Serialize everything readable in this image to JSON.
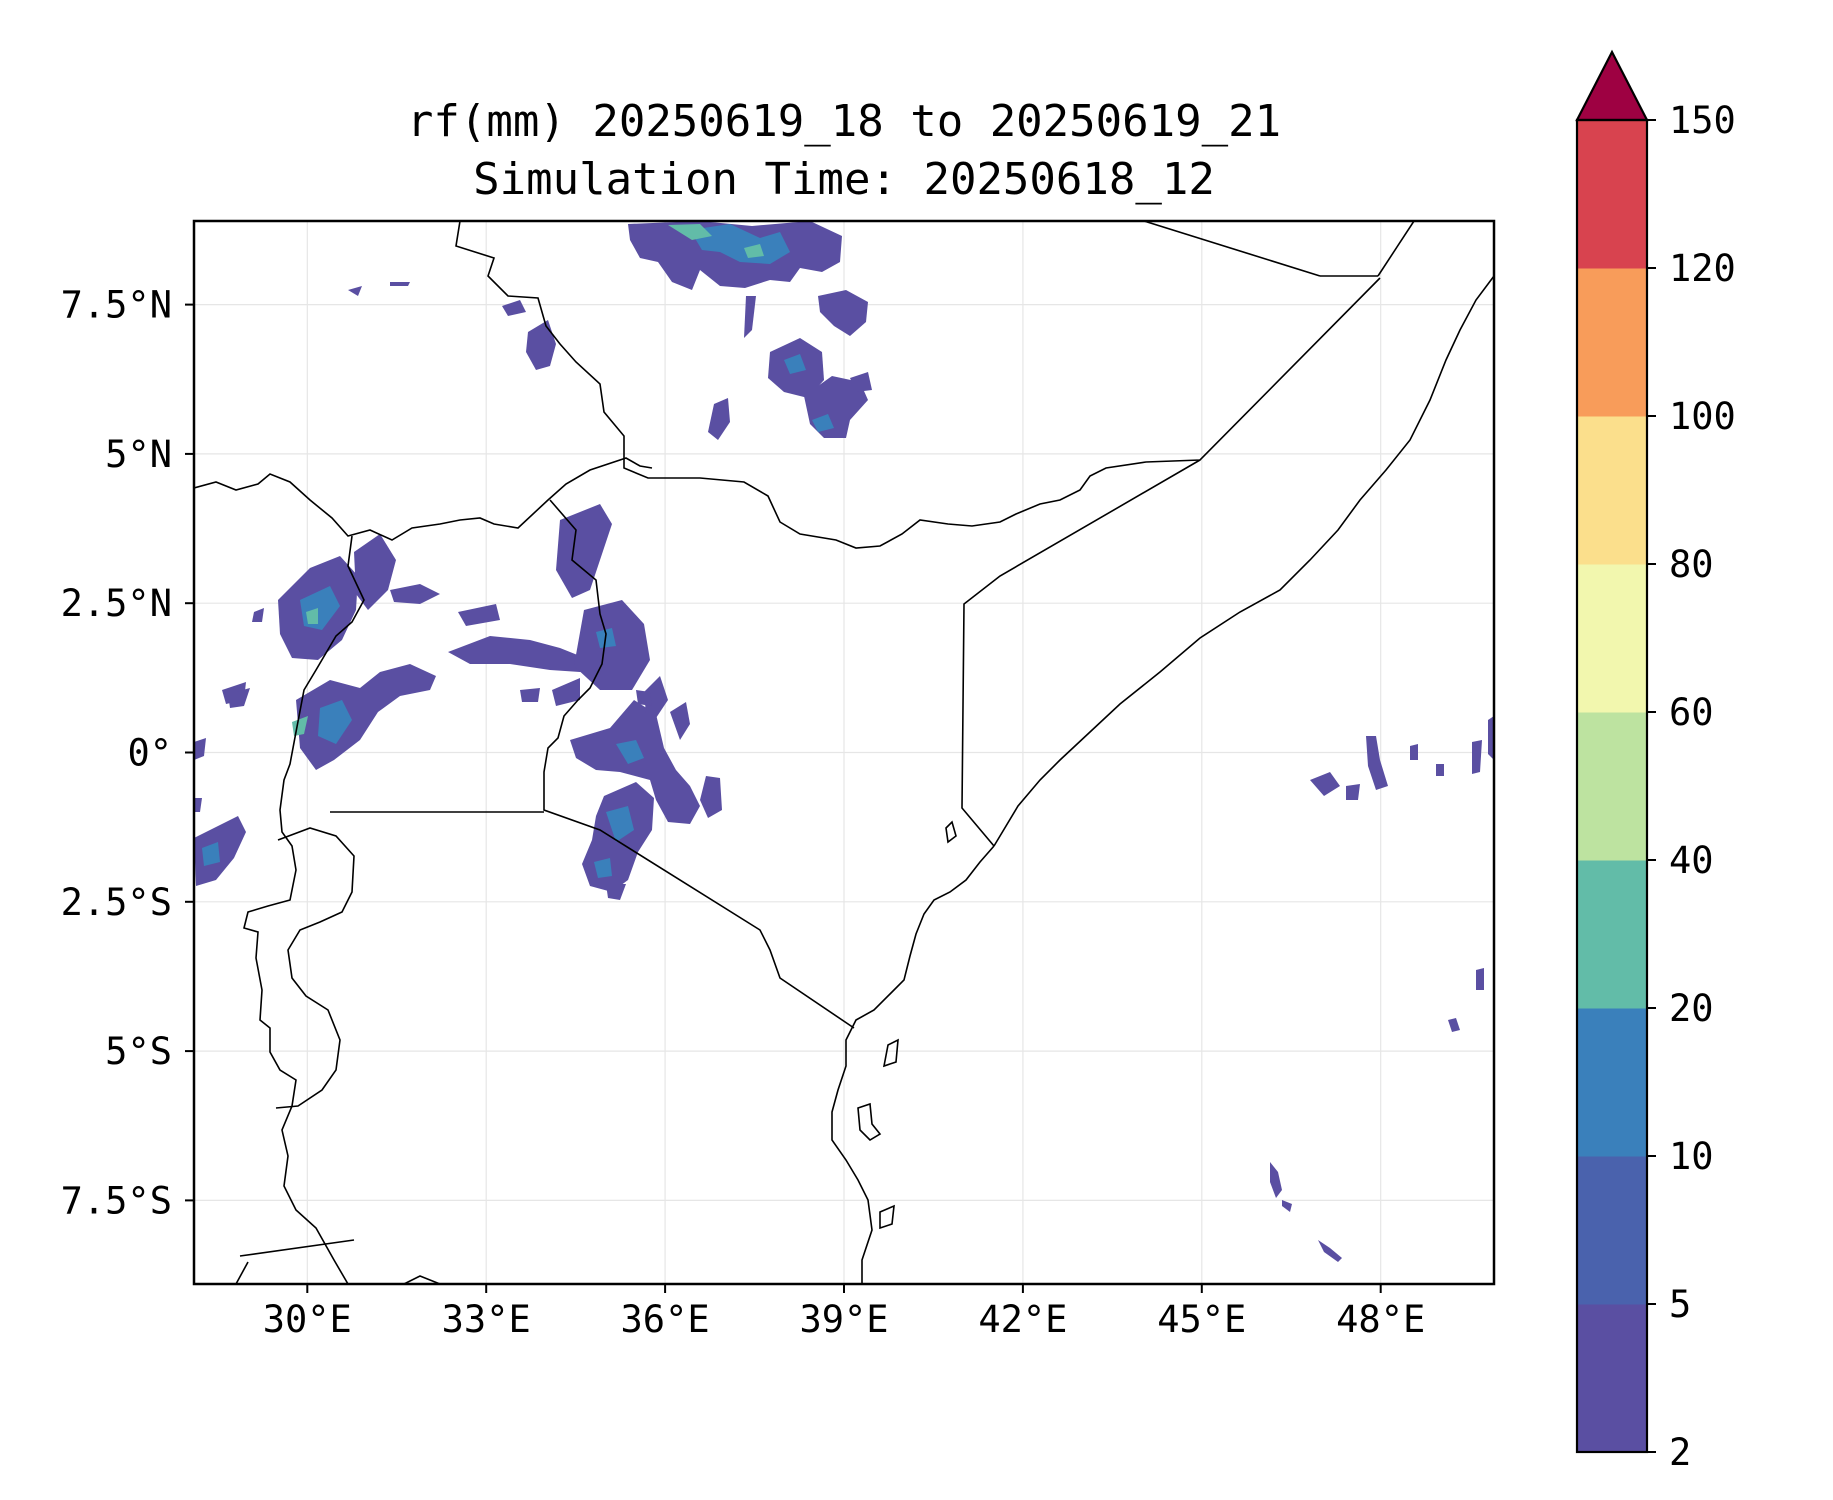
{
  "title": {
    "line1": "rf(mm) 20250619_18 to 20250619_21",
    "line2": "Simulation Time: 20250618_12"
  },
  "map": {
    "lon_range": [
      28.1,
      49.9
    ],
    "lat_range": [
      -8.9,
      8.9
    ],
    "lon_ticks": [
      {
        "value": 30,
        "label": "30°E"
      },
      {
        "value": 33,
        "label": "33°E"
      },
      {
        "value": 36,
        "label": "36°E"
      },
      {
        "value": 39,
        "label": "39°E"
      },
      {
        "value": 42,
        "label": "42°E"
      },
      {
        "value": 45,
        "label": "45°E"
      },
      {
        "value": 48,
        "label": "48°E"
      }
    ],
    "lat_ticks": [
      {
        "value": 7.5,
        "label": "7.5°N"
      },
      {
        "value": 5,
        "label": "5°N"
      },
      {
        "value": 2.5,
        "label": "2.5°N"
      },
      {
        "value": 0,
        "label": "0°"
      },
      {
        "value": -2.5,
        "label": "2.5°S"
      },
      {
        "value": -5,
        "label": "5°S"
      },
      {
        "value": -7.5,
        "label": "7.5°S"
      }
    ],
    "gridlines": true
  },
  "colorbar": {
    "levels": [
      "2",
      "5",
      "10",
      "20",
      "40",
      "60",
      "80",
      "100",
      "120",
      "150"
    ],
    "colors": [
      "#5a4fa2",
      "#4a62ad",
      "#3a80bb",
      "#62bca8",
      "#bde3a0",
      "#f2f7ae",
      "#fbdf8c",
      "#f89c5a",
      "#d8434f"
    ],
    "extend_color": "#9e0142",
    "extend": "max"
  },
  "colors": {
    "border": "#000000",
    "grid": "#e6e6e6",
    "rain_low": "#5a4fa2",
    "rain_mid": "#3a80bb",
    "rain_high": "#62bca8"
  }
}
